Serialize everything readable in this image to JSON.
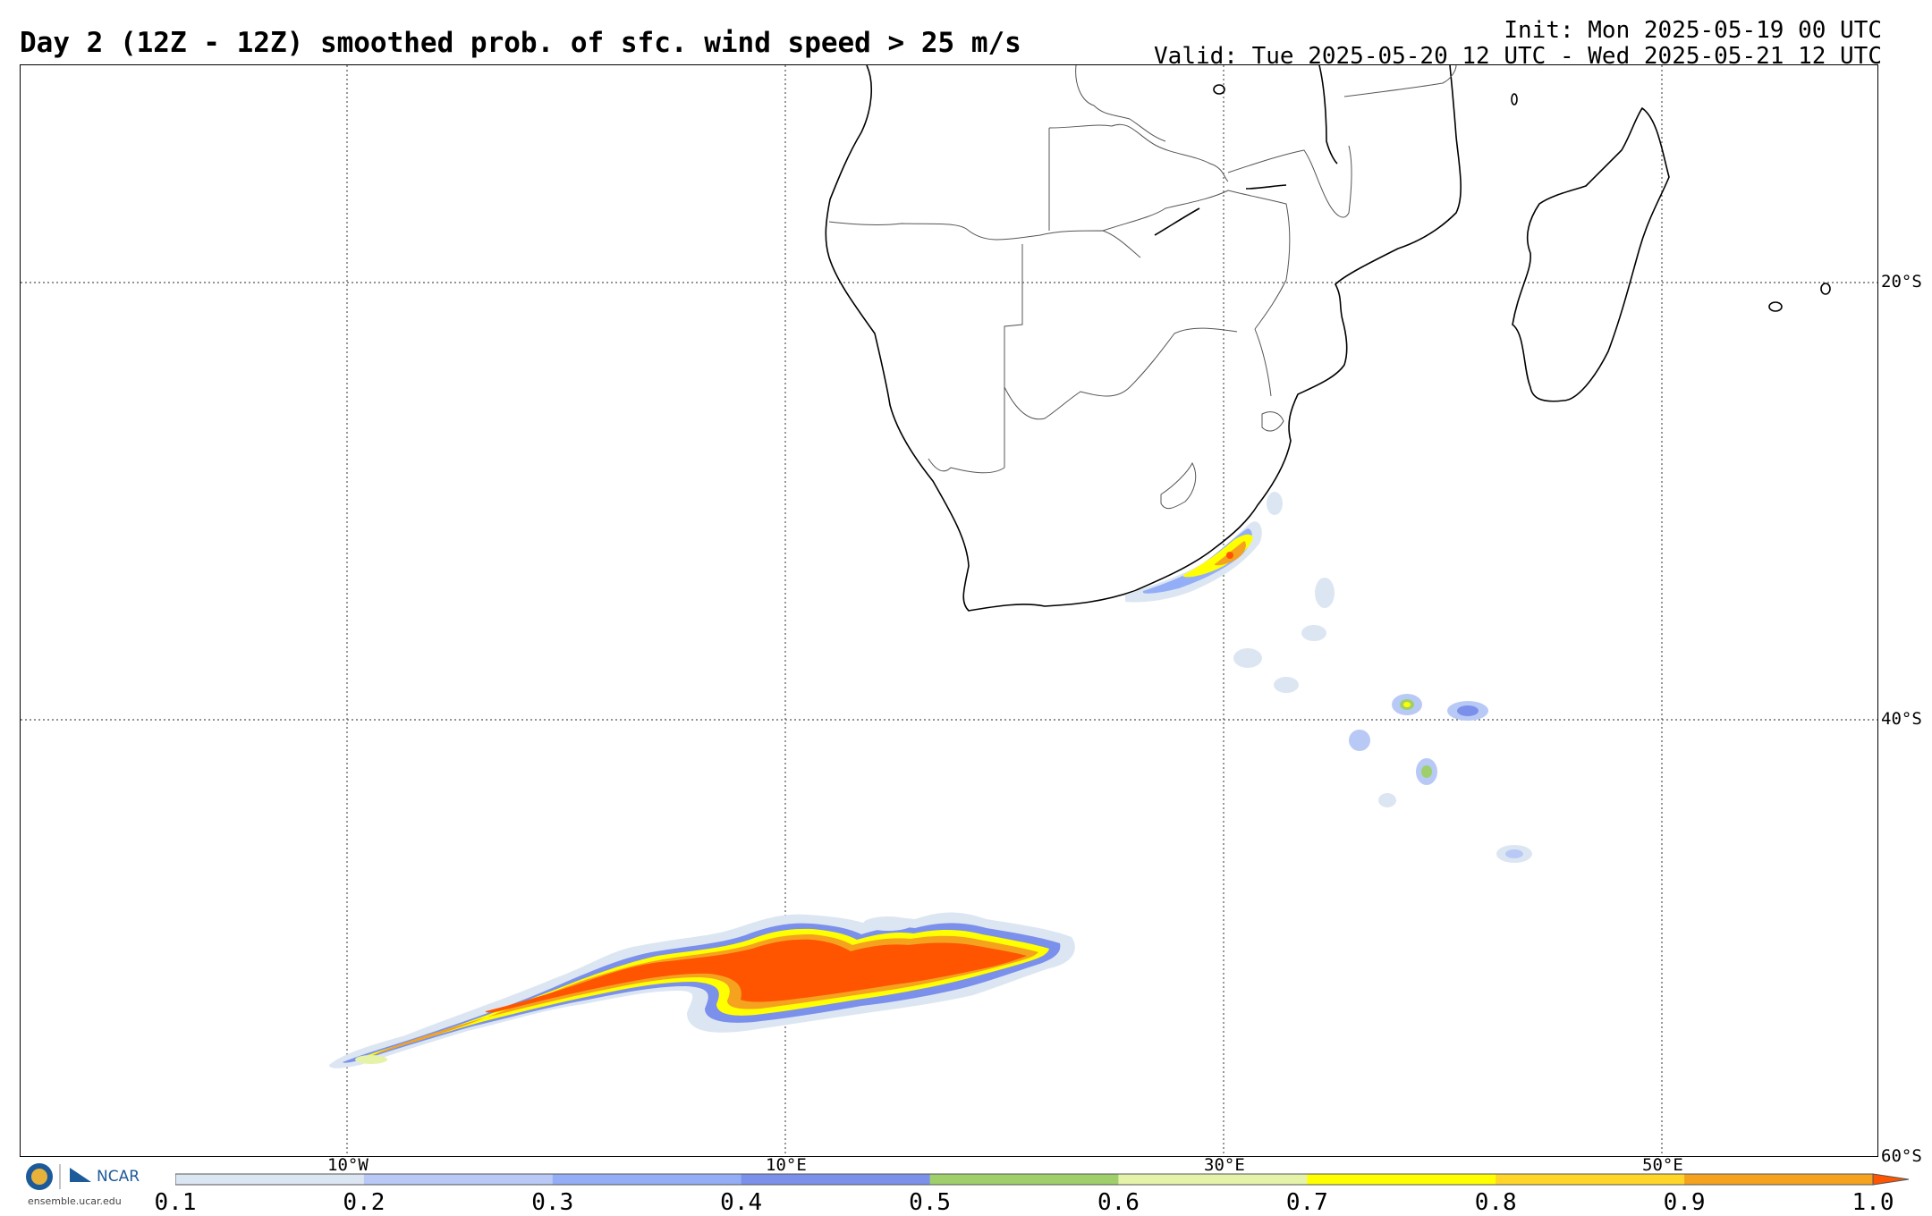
{
  "header": {
    "title": "Day 2 (12Z - 12Z) smoothed prob. of sfc. wind speed > 25 m/s",
    "init": "Init: Mon 2025-05-19 00 UTC",
    "valid": "Valid: Tue 2025-05-20 12 UTC - Wed 2025-05-21 12 UTC"
  },
  "map": {
    "lat_labels": [
      "20°S",
      "40°S",
      "60°S"
    ],
    "lon_labels": [
      "10°W",
      "10°E",
      "30°E",
      "50°E"
    ]
  },
  "colorbar": {
    "ticks": [
      "0.1",
      "0.2",
      "0.3",
      "0.4",
      "0.5",
      "0.6",
      "0.7",
      "0.8",
      "0.9",
      "1.0"
    ],
    "colors": [
      "#dce6f2",
      "#b8c9f5",
      "#93aef7",
      "#7a90ea",
      "#9fcf6a",
      "#e4f3a8",
      "#ffff00",
      "#ffd52a",
      "#f5a21e",
      "#ff5500"
    ]
  },
  "branding": {
    "org": "NCAR",
    "url": "ensemble.ucar.edu"
  }
}
